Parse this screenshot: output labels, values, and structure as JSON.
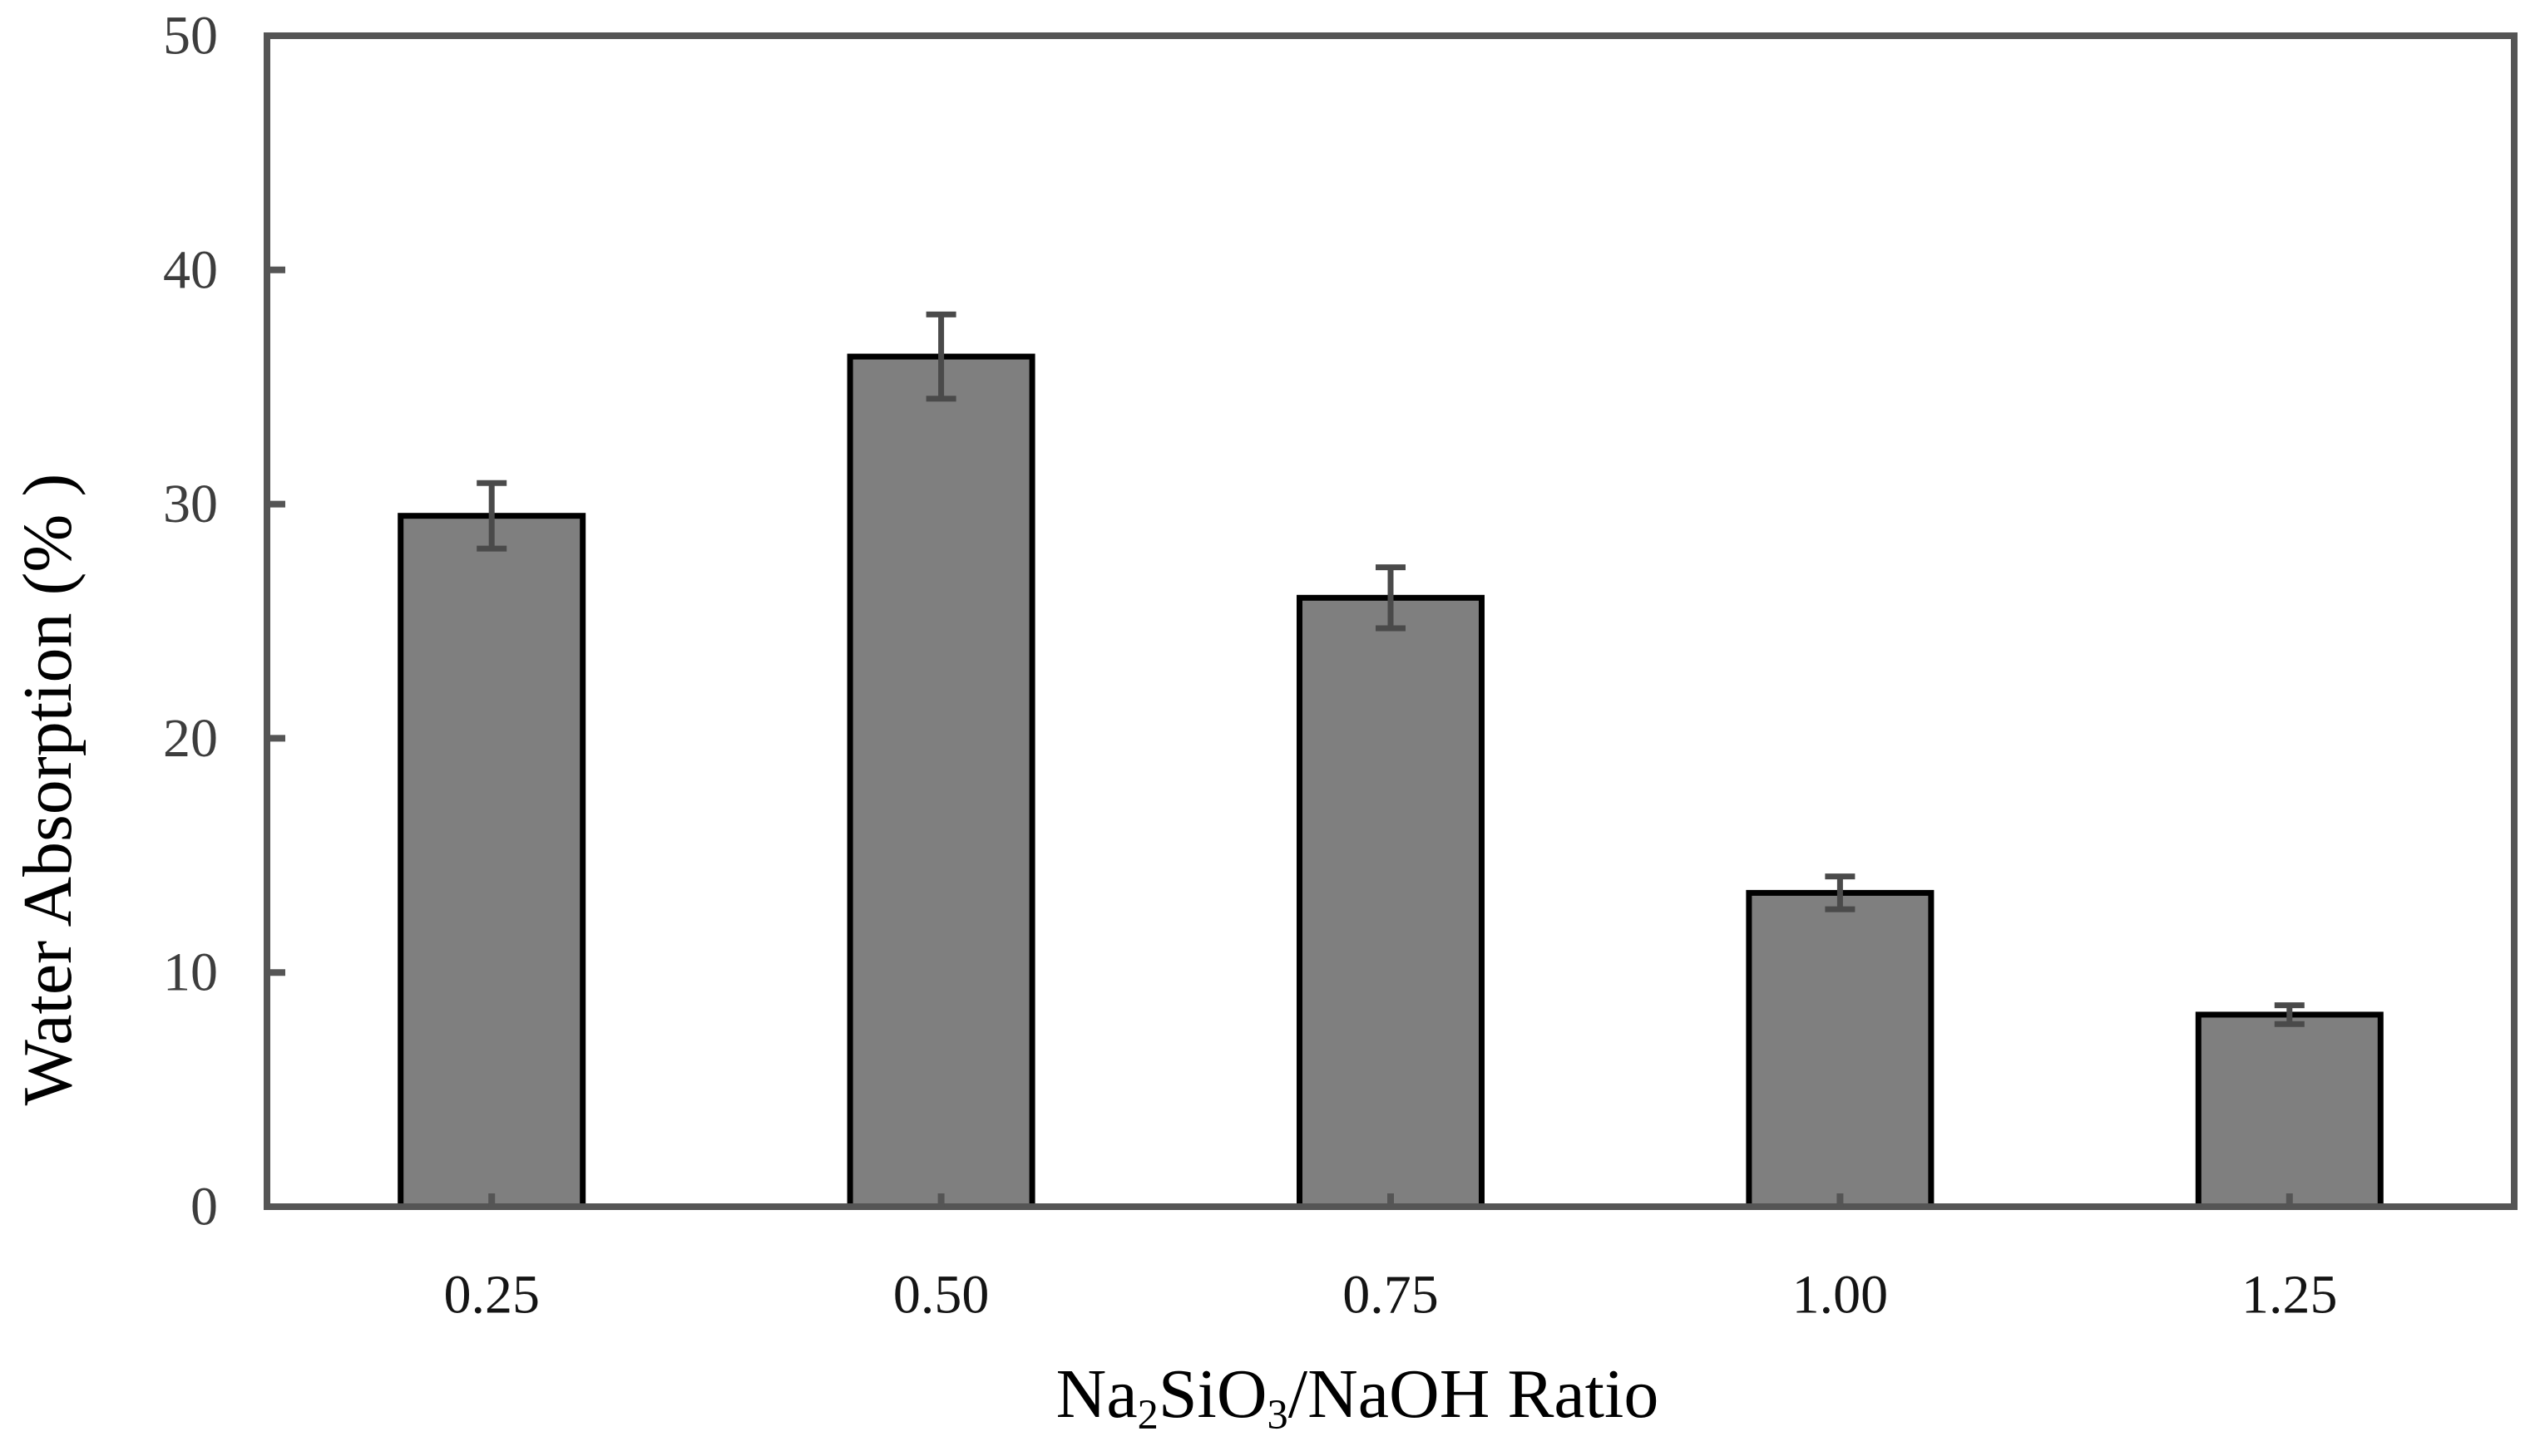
{
  "chart_data": {
    "type": "bar",
    "title": "",
    "ylabel": "Water Absorption (% )",
    "xlabel_plain": "Na2SiO3/NaOH Ratio",
    "xlabel_segments": {
      "s0": "Na",
      "sub0": "2",
      "s1": "SiO",
      "sub1": "3",
      "s2": "/NaOH Ratio"
    },
    "categories": [
      "0.25",
      "0.50",
      "0.75",
      "1.00",
      "1.25"
    ],
    "values": [
      29.5,
      36.3,
      26.0,
      13.4,
      8.2
    ],
    "errors": [
      1.4,
      1.8,
      1.3,
      0.7,
      0.4
    ],
    "yticks": [
      0,
      10,
      20,
      30,
      40,
      50
    ],
    "ylim": [
      0,
      50
    ],
    "grid": false,
    "legend": null,
    "frame": true,
    "colors": {
      "bar_fill": "#7f7f7f",
      "bar_border": "#000000",
      "error_bar": "#4a4a4a",
      "axis_line": "#555555",
      "y_tick_label": "#3d3d3d",
      "x_tick_label": "#141414",
      "axis_title": "#000000"
    }
  }
}
